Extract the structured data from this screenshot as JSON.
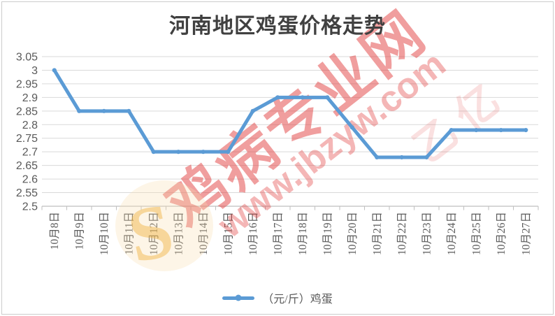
{
  "chart_data": {
    "type": "line",
    "title": "河南地区鸡蛋价格走势",
    "categories": [
      "10月8日",
      "10月9日",
      "10月10日",
      "10月11日",
      "10月12日",
      "10月13日",
      "10月14日",
      "10月15日",
      "10月16日",
      "10月17日",
      "10月18日",
      "10月19日",
      "10月20日",
      "10月21日",
      "10月22日",
      "10月23日",
      "10月24日",
      "10月25日",
      "10月26日",
      "10月27日"
    ],
    "series": [
      {
        "name": "（元/斤）鸡蛋",
        "values": [
          3,
          2.85,
          2.85,
          2.85,
          2.7,
          2.7,
          2.7,
          2.7,
          2.85,
          2.9,
          2.9,
          2.9,
          2.79,
          2.68,
          2.68,
          2.68,
          2.78,
          2.78,
          2.78,
          2.78
        ]
      }
    ],
    "ylim": [
      2.5,
      3.05
    ],
    "ytick_step": 0.05,
    "ytick_labels": [
      "3.05",
      "3",
      "2.95",
      "2.9",
      "2.85",
      "2.8",
      "2.75",
      "2.7",
      "2.65",
      "2.6",
      "2.55",
      "2.5"
    ],
    "xlabel": "",
    "ylabel": "",
    "grid": true,
    "legend_position": "bottom"
  },
  "legend": {
    "label": "（元/斤）鸡蛋"
  },
  "watermark": {
    "line1": "鸡病专业网",
    "line2": "www.jbzyw.com",
    "extra": "乙 亿",
    "logo": "S"
  },
  "colors": {
    "line": "#5B9BD5",
    "grid": "#D9D9D9",
    "axis": "#BFBFBF",
    "label_text": "#595959",
    "title_text": "#404040"
  }
}
